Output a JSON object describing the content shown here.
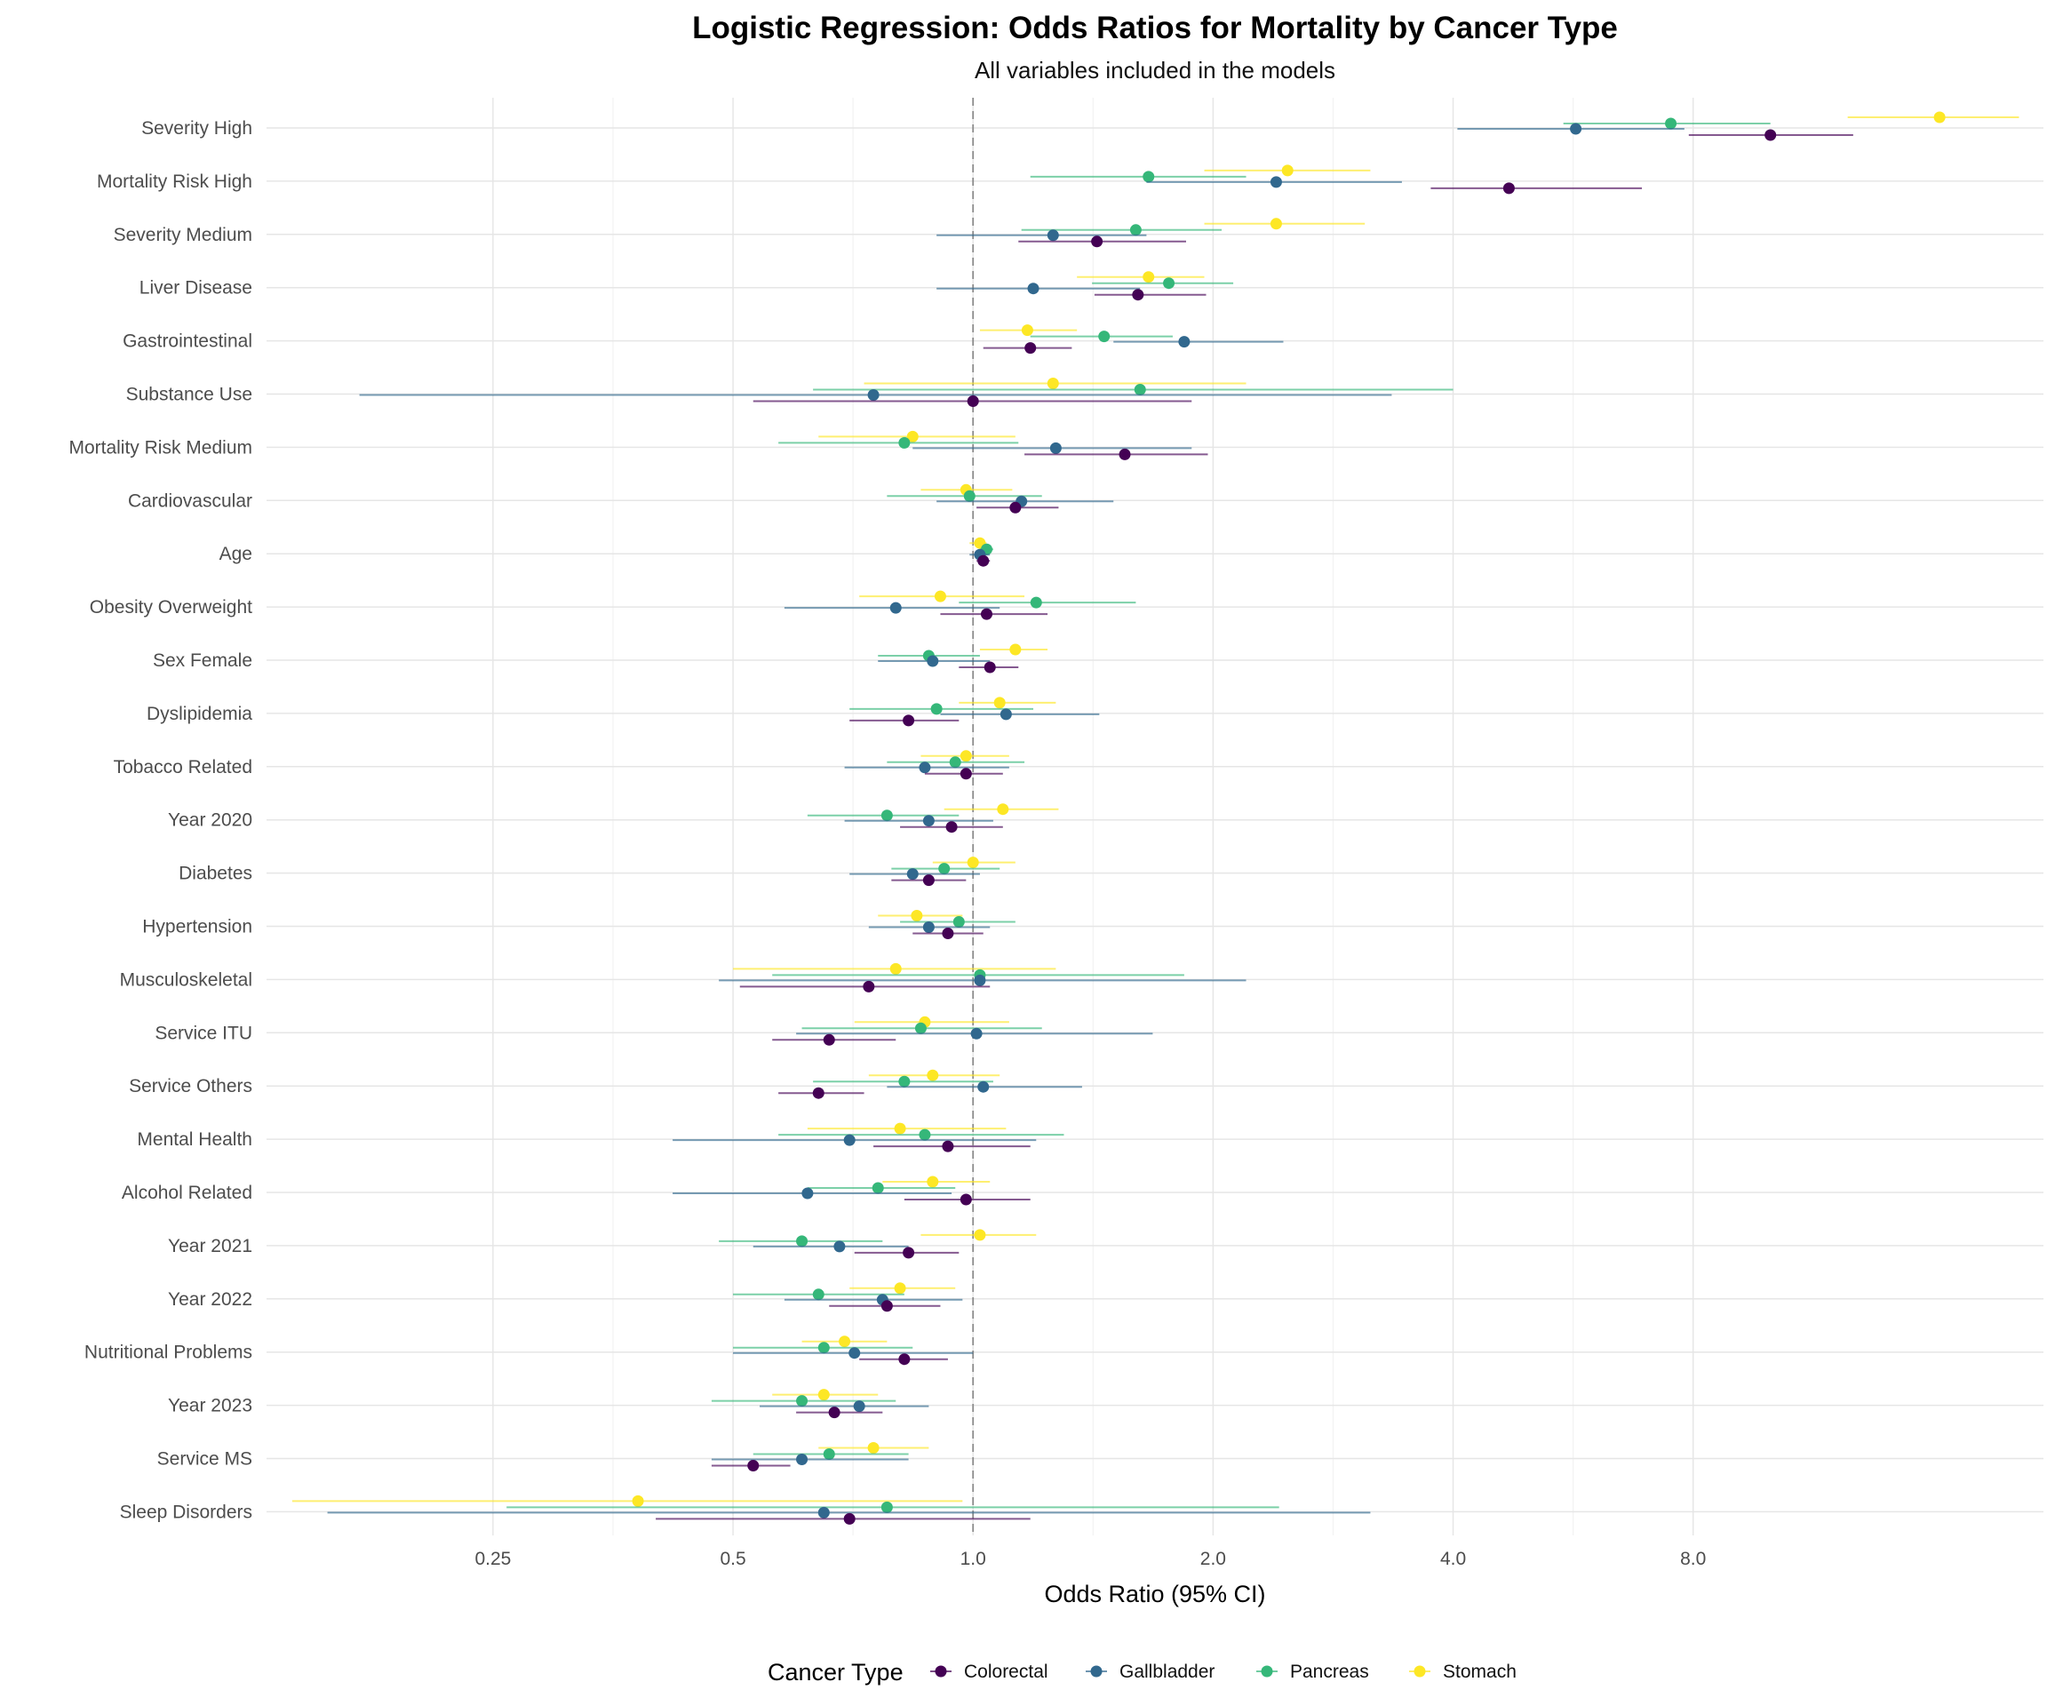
{
  "chart_data": {
    "type": "forest",
    "title": "Logistic Regression: Odds Ratios for Mortality by Cancer Type",
    "subtitle": "All variables included in the models",
    "xlabel": "Odds Ratio (95% CI)",
    "x_scale": "log2",
    "x_ticks": [
      "0.25",
      "0.5",
      "1.0",
      "2.0",
      "4.0",
      "8.0"
    ],
    "xlim": [
      0.13,
      22
    ],
    "reference_line": 1.0,
    "legend_title": "Cancer Type",
    "legend_position": "bottom",
    "colors": {
      "Colorectal": "#440154",
      "Gallbladder": "#31688E",
      "Pancreas": "#35B779",
      "Stomach": "#FDE725"
    },
    "series_order": [
      "Stomach",
      "Pancreas",
      "Gallbladder",
      "Colorectal"
    ],
    "legend_order": [
      "Colorectal",
      "Gallbladder",
      "Pancreas",
      "Stomach"
    ],
    "variables": [
      "Severity High",
      "Mortality Risk High",
      "Severity Medium",
      "Liver Disease",
      "Gastrointestinal",
      "Substance Use",
      "Mortality Risk Medium",
      "Cardiovascular",
      "Age",
      "Obesity Overweight",
      "Sex Female",
      "Dyslipidemia",
      "Tobacco Related",
      "Year 2020",
      "Diabetes",
      "Hypertension",
      "Musculoskeletal",
      "Service ITU",
      "Service Others",
      "Mental Health",
      "Alcohol Related",
      "Year 2021",
      "Year 2022",
      "Nutritional Problems",
      "Year 2023",
      "Service MS",
      "Sleep Disorders"
    ],
    "series": [
      {
        "name": "Colorectal",
        "points": [
          [
            10.0,
            7.9,
            12.7
          ],
          [
            4.7,
            3.75,
            6.9
          ],
          [
            1.43,
            1.14,
            1.85
          ],
          [
            1.61,
            1.42,
            1.96
          ],
          [
            1.18,
            1.03,
            1.33
          ],
          [
            1.0,
            0.53,
            1.88
          ],
          [
            1.55,
            1.16,
            1.97
          ],
          [
            1.13,
            1.01,
            1.28
          ],
          [
            1.03,
            1.01,
            1.05
          ],
          [
            1.04,
            0.91,
            1.24
          ],
          [
            1.05,
            0.96,
            1.14
          ],
          [
            0.83,
            0.7,
            0.96
          ],
          [
            0.98,
            0.87,
            1.09
          ],
          [
            0.94,
            0.81,
            1.09
          ],
          [
            0.88,
            0.79,
            0.98
          ],
          [
            0.93,
            0.84,
            1.03
          ],
          [
            0.74,
            0.51,
            1.05
          ],
          [
            0.66,
            0.56,
            0.8
          ],
          [
            0.64,
            0.57,
            0.73
          ],
          [
            0.93,
            0.75,
            1.18
          ],
          [
            0.98,
            0.82,
            1.18
          ],
          [
            0.83,
            0.71,
            0.96
          ],
          [
            0.78,
            0.66,
            0.91
          ],
          [
            0.82,
            0.72,
            0.93
          ],
          [
            0.67,
            0.6,
            0.77
          ],
          [
            0.53,
            0.47,
            0.59
          ],
          [
            0.7,
            0.4,
            1.18
          ]
        ]
      },
      {
        "name": "Gallbladder",
        "points": [
          [
            5.7,
            4.05,
            7.8
          ],
          [
            2.4,
            1.65,
            3.45
          ],
          [
            1.26,
            0.9,
            1.65
          ],
          [
            1.19,
            0.9,
            1.62
          ],
          [
            1.84,
            1.5,
            2.45
          ],
          [
            0.75,
            0.17,
            3.35
          ],
          [
            1.27,
            0.84,
            1.88
          ],
          [
            1.15,
            0.9,
            1.5
          ],
          [
            1.02,
            0.99,
            1.05
          ],
          [
            0.8,
            0.58,
            1.08
          ],
          [
            0.89,
            0.76,
            1.05
          ],
          [
            1.1,
            0.91,
            1.44
          ],
          [
            0.87,
            0.69,
            1.11
          ],
          [
            0.88,
            0.69,
            1.06
          ],
          [
            0.84,
            0.7,
            1.02
          ],
          [
            0.88,
            0.74,
            1.05
          ],
          [
            1.02,
            0.48,
            2.2
          ],
          [
            1.01,
            0.6,
            1.68
          ],
          [
            1.03,
            0.78,
            1.37
          ],
          [
            0.7,
            0.42,
            1.2
          ],
          [
            0.62,
            0.42,
            0.94
          ],
          [
            0.68,
            0.53,
            0.83
          ],
          [
            0.77,
            0.58,
            0.97
          ],
          [
            0.71,
            0.5,
            1.0
          ],
          [
            0.72,
            0.54,
            0.88
          ],
          [
            0.61,
            0.47,
            0.83
          ],
          [
            0.65,
            0.155,
            3.15
          ]
        ]
      },
      {
        "name": "Pancreas",
        "points": [
          [
            7.5,
            5.5,
            10.0
          ],
          [
            1.66,
            1.18,
            2.2
          ],
          [
            1.6,
            1.15,
            2.05
          ],
          [
            1.76,
            1.41,
            2.12
          ],
          [
            1.46,
            1.18,
            1.78
          ],
          [
            1.62,
            0.63,
            4.0
          ],
          [
            0.82,
            0.57,
            1.14
          ],
          [
            0.99,
            0.78,
            1.22
          ],
          [
            1.04,
            1.02,
            1.06
          ],
          [
            1.2,
            0.96,
            1.6
          ],
          [
            0.88,
            0.76,
            1.02
          ],
          [
            0.9,
            0.7,
            1.19
          ],
          [
            0.95,
            0.78,
            1.16
          ],
          [
            0.78,
            0.62,
            0.96
          ],
          [
            0.92,
            0.79,
            1.08
          ],
          [
            0.96,
            0.81,
            1.13
          ],
          [
            1.02,
            0.56,
            1.84
          ],
          [
            0.86,
            0.61,
            1.22
          ],
          [
            0.82,
            0.63,
            1.06
          ],
          [
            0.87,
            0.57,
            1.3
          ],
          [
            0.76,
            0.62,
            0.95
          ],
          [
            0.61,
            0.48,
            0.77
          ],
          [
            0.64,
            0.5,
            0.82
          ],
          [
            0.65,
            0.5,
            0.84
          ],
          [
            0.61,
            0.47,
            0.8
          ],
          [
            0.66,
            0.53,
            0.83
          ],
          [
            0.78,
            0.26,
            2.42
          ]
        ]
      },
      {
        "name": "Stomach",
        "points": [
          [
            16.3,
            12.5,
            20.5
          ],
          [
            2.48,
            1.95,
            3.15
          ],
          [
            2.4,
            1.95,
            3.1
          ],
          [
            1.66,
            1.35,
            1.95
          ],
          [
            1.17,
            1.02,
            1.35
          ],
          [
            1.26,
            0.73,
            2.2
          ],
          [
            0.84,
            0.64,
            1.13
          ],
          [
            0.98,
            0.86,
            1.12
          ],
          [
            1.02,
            0.99,
            1.04
          ],
          [
            0.91,
            0.72,
            1.16
          ],
          [
            1.13,
            1.02,
            1.24
          ],
          [
            1.08,
            0.96,
            1.27
          ],
          [
            0.98,
            0.86,
            1.11
          ],
          [
            1.09,
            0.92,
            1.28
          ],
          [
            1.0,
            0.89,
            1.13
          ],
          [
            0.85,
            0.76,
            0.97
          ],
          [
            0.8,
            0.5,
            1.27
          ],
          [
            0.87,
            0.71,
            1.11
          ],
          [
            0.89,
            0.74,
            1.08
          ],
          [
            0.81,
            0.62,
            1.1
          ],
          [
            0.89,
            0.77,
            1.05
          ],
          [
            1.02,
            0.86,
            1.2
          ],
          [
            0.81,
            0.7,
            0.95
          ],
          [
            0.69,
            0.61,
            0.78
          ],
          [
            0.65,
            0.56,
            0.76
          ],
          [
            0.75,
            0.64,
            0.88
          ],
          [
            0.38,
            0.14,
            0.97
          ]
        ]
      }
    ]
  }
}
